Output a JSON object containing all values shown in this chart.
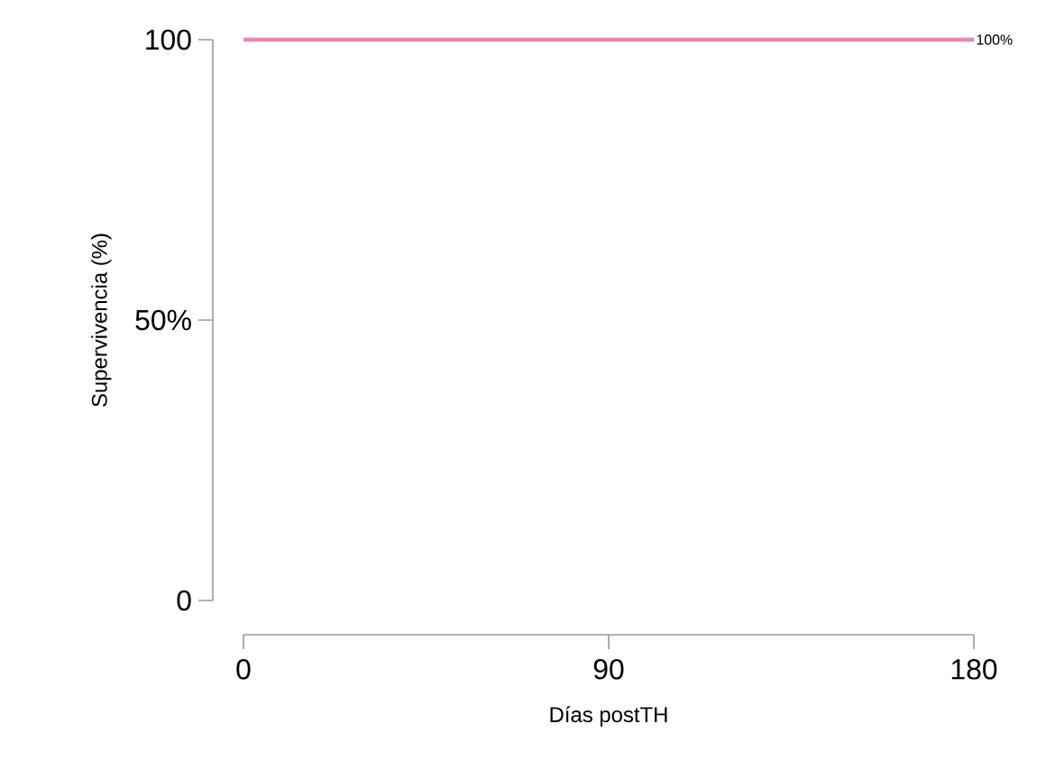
{
  "chart_data": {
    "type": "line",
    "xlabel": "Días postTH",
    "ylabel": "Supervivencia (%)",
    "x": [
      0,
      180
    ],
    "series": [
      {
        "color": "#e48ab4",
        "values": [
          100,
          100
        ]
      }
    ],
    "xlim": [
      0,
      180
    ],
    "ylim": [
      0,
      100
    ],
    "xticks": [
      0,
      90,
      180
    ],
    "yticks": [
      0,
      {
        "value": 50,
        "label": "50%"
      },
      100
    ],
    "annotations": [
      {
        "text": "100%",
        "x": 180,
        "y": 100
      }
    ]
  }
}
